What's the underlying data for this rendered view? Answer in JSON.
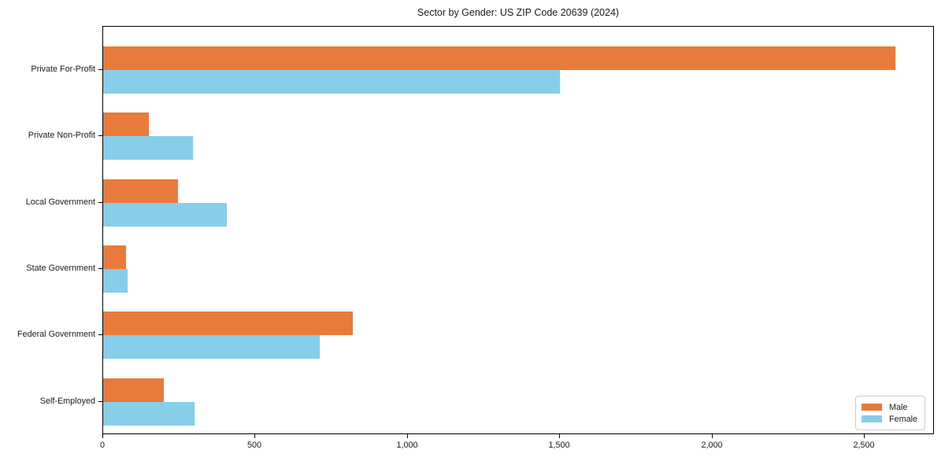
{
  "figure": {
    "title": "Sector by Gender: US ZIP Code 20639 (2024)"
  },
  "chart_data": {
    "type": "bar",
    "orientation": "horizontal",
    "title": "Sector by Gender: US ZIP Code 20639 (2024)",
    "categories": [
      "Private For-Profit",
      "Private Non-Profit",
      "Local Government",
      "State Government",
      "Federal Government",
      "Self-Employed"
    ],
    "series": [
      {
        "name": "Male",
        "color": "#e87a3c",
        "values": [
          2600,
          150,
          245,
          75,
          820,
          200
        ]
      },
      {
        "name": "Female",
        "color": "#87ceeb",
        "values": [
          1500,
          295,
          405,
          80,
          710,
          300
        ]
      }
    ],
    "xlabel": "",
    "ylabel": "",
    "xlim": [
      0,
      2730
    ],
    "x_ticks": [
      {
        "value": 0,
        "label": "0"
      },
      {
        "value": 500,
        "label": "500"
      },
      {
        "value": 1000,
        "label": "1,000"
      },
      {
        "value": 1500,
        "label": "1,500"
      },
      {
        "value": 2000,
        "label": "2,000"
      },
      {
        "value": 2500,
        "label": "2,500"
      }
    ],
    "grid": false,
    "legend": {
      "position": "lower right",
      "entries": [
        "Male",
        "Female"
      ]
    },
    "colors": {
      "axis": "#000000",
      "text": "#1a1a1a",
      "legend_border": "#cccccc",
      "background": "#ffffff"
    }
  }
}
